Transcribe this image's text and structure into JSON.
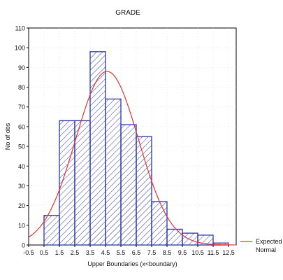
{
  "chart_data": {
    "type": "bar",
    "title": "GRADE",
    "xlabel": "Upper Boundaries (x<boundary)",
    "ylabel": "No of obs",
    "x_ticks": [
      "-0.5",
      "0.5",
      "1.5",
      "2.5",
      "3.5",
      "4.5",
      "5.5",
      "6.5",
      "7.5",
      "8.5",
      "9.5",
      "10.5",
      "11.5",
      "12.5"
    ],
    "x_range": [
      -0.5,
      13
    ],
    "ylim": [
      0,
      110
    ],
    "y_ticks": [
      0,
      10,
      20,
      30,
      40,
      50,
      60,
      70,
      80,
      90,
      100,
      110
    ],
    "bins": [
      {
        "lower": -0.5,
        "upper": 0.5,
        "value": 0
      },
      {
        "lower": 0.5,
        "upper": 1.5,
        "value": 15
      },
      {
        "lower": 1.5,
        "upper": 2.5,
        "value": 63
      },
      {
        "lower": 2.5,
        "upper": 3.5,
        "value": 63
      },
      {
        "lower": 3.5,
        "upper": 4.5,
        "value": 98
      },
      {
        "lower": 4.5,
        "upper": 5.5,
        "value": 74
      },
      {
        "lower": 5.5,
        "upper": 6.5,
        "value": 61
      },
      {
        "lower": 6.5,
        "upper": 7.5,
        "value": 55
      },
      {
        "lower": 7.5,
        "upper": 8.5,
        "value": 22
      },
      {
        "lower": 8.5,
        "upper": 9.5,
        "value": 8
      },
      {
        "lower": 9.5,
        "upper": 10.5,
        "value": 6
      },
      {
        "lower": 10.5,
        "upper": 11.5,
        "value": 5
      },
      {
        "lower": 11.5,
        "upper": 12.5,
        "value": 1
      }
    ],
    "expected_normal": {
      "name": "Expected Normal",
      "mean": 4.6,
      "peak": 88,
      "sd": 2.05,
      "color": "#e83030"
    },
    "legend": {
      "position": "right",
      "entries": [
        "Expected",
        "Normal"
      ]
    },
    "bar_color": "#2a35a8",
    "grid": true
  }
}
